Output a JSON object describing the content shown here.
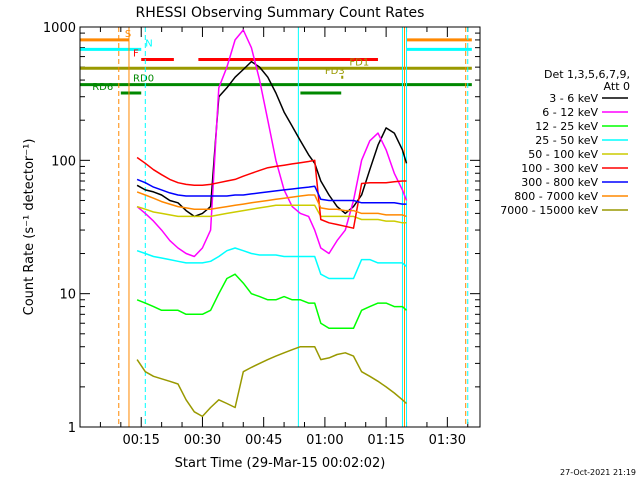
{
  "chart_data": {
    "type": "line",
    "title": "RHESSI Observing Summary Count Rates",
    "xlabel": "Start Time (29-Mar-15 00:02:02)",
    "ylabel": "Count Rate (s⁻¹ detector⁻¹)",
    "yscale": "log",
    "xlim_minutes": [
      2,
      100
    ],
    "ylim": [
      1,
      1000
    ],
    "x_ticks": [
      {
        "value": 17,
        "label": "00:15"
      },
      {
        "value": 32,
        "label": "00:30"
      },
      {
        "value": 47,
        "label": "00:45"
      },
      {
        "value": 62,
        "label": "01:00"
      },
      {
        "value": 77,
        "label": "01:15"
      },
      {
        "value": 92,
        "label": "01:30"
      }
    ],
    "y_ticks": [
      {
        "value": 1,
        "label": "1"
      },
      {
        "value": 10,
        "label": "10"
      },
      {
        "value": 100,
        "label": "100"
      },
      {
        "value": 1000,
        "label": "1000"
      }
    ],
    "legend_header": [
      "Det 1,3,5,6,7,9,",
      "Att 0"
    ],
    "legend_position": "right",
    "x": [
      12.5,
      14,
      16,
      18,
      20,
      22,
      24,
      26,
      28,
      30,
      32,
      34,
      36,
      38,
      40,
      42,
      44,
      46,
      48,
      50,
      52,
      54,
      56,
      58,
      59.5,
      61,
      63,
      65,
      67,
      69,
      71,
      73,
      75,
      77,
      79,
      81,
      82
    ],
    "series": [
      {
        "name": "3 - 6 keV",
        "color": "#000000",
        "values": [
          null,
          null,
          65,
          60,
          58,
          55,
          50,
          48,
          42,
          38,
          40,
          45,
          300,
          350,
          420,
          480,
          550,
          500,
          420,
          320,
          230,
          180,
          140,
          110,
          95,
          70,
          55,
          45,
          40,
          45,
          55,
          85,
          130,
          175,
          160,
          120,
          95
        ]
      },
      {
        "name": "6 - 12 keV",
        "color": "#ff00ff",
        "values": [
          null,
          null,
          45,
          40,
          35,
          30,
          25,
          22,
          20,
          19,
          22,
          30,
          350,
          500,
          800,
          950,
          700,
          400,
          200,
          100,
          60,
          45,
          40,
          38,
          30,
          22,
          20,
          25,
          30,
          50,
          100,
          140,
          160,
          120,
          80,
          60,
          50
        ]
      },
      {
        "name": "12 - 25 keV",
        "color": "#00ff00",
        "values": [
          null,
          null,
          9,
          8.5,
          8,
          7.5,
          7.5,
          7.5,
          7,
          7,
          7,
          7.5,
          10,
          13,
          14,
          12,
          10,
          9.5,
          9,
          9,
          9.5,
          9,
          9,
          8.5,
          8.5,
          6,
          5.5,
          5.5,
          5.5,
          5.5,
          7.5,
          8,
          8.5,
          8.5,
          8,
          8,
          7.5
        ]
      },
      {
        "name": "25 - 50 keV",
        "color": "#00ffff",
        "values": [
          null,
          null,
          21,
          20,
          19,
          18.5,
          18,
          17.5,
          17,
          17,
          17,
          17.5,
          19,
          21,
          22,
          21,
          20,
          19.5,
          19.5,
          19.5,
          19,
          19,
          19,
          19,
          19,
          14,
          13,
          13,
          13,
          13,
          18,
          18,
          17,
          17,
          17,
          17,
          16
        ]
      },
      {
        "name": "50 - 100 keV",
        "color": "#cccc00",
        "values": [
          null,
          null,
          45,
          43,
          41,
          40,
          39,
          38,
          38,
          38,
          38,
          38,
          39,
          40,
          41,
          42,
          43,
          44,
          45,
          46,
          46,
          46,
          46,
          46,
          46,
          38,
          38,
          38,
          38,
          38,
          36,
          36,
          36,
          35,
          35,
          34,
          34
        ]
      },
      {
        "name": "100 - 300 keV",
        "color": "#ff0000",
        "values": [
          null,
          null,
          105,
          95,
          85,
          78,
          72,
          68,
          66,
          65,
          65,
          66,
          68,
          70,
          72,
          76,
          80,
          84,
          88,
          90,
          92,
          94,
          96,
          98,
          100,
          36,
          34,
          33,
          32,
          31,
          67,
          68,
          68,
          68,
          69,
          70,
          70
        ]
      },
      {
        "name": "300 - 800 keV",
        "color": "#0000ff",
        "values": [
          null,
          null,
          72,
          68,
          63,
          60,
          57,
          55,
          54,
          54,
          54,
          54,
          54,
          54,
          55,
          55,
          56,
          57,
          58,
          59,
          60,
          61,
          62,
          63,
          64,
          51,
          50,
          50,
          50,
          50,
          48,
          48,
          48,
          48,
          48,
          47,
          47
        ]
      },
      {
        "name": "800 - 7000 keV",
        "color": "#ff8800",
        "values": [
          null,
          null,
          58,
          55,
          52,
          49,
          47,
          45,
          44,
          43,
          43,
          43,
          44,
          45,
          46,
          47,
          48,
          49,
          50,
          51,
          52,
          53,
          54,
          55,
          55,
          44,
          43,
          43,
          42,
          42,
          40,
          40,
          40,
          39,
          39,
          39,
          38
        ]
      },
      {
        "name": "7000 - 15000 keV",
        "color": "#999900",
        "values": [
          null,
          null,
          3.2,
          2.6,
          2.4,
          2.3,
          2.2,
          2.1,
          1.6,
          1.3,
          1.2,
          1.4,
          1.6,
          1.5,
          1.4,
          2.6,
          2.8,
          3.0,
          3.2,
          3.4,
          3.6,
          3.8,
          4.0,
          4.0,
          4.0,
          3.2,
          3.3,
          3.5,
          3.6,
          3.4,
          2.6,
          2.4,
          2.2,
          2.0,
          1.8,
          1.6,
          1.5
        ]
      }
    ],
    "flag_bars": [
      {
        "label": "S",
        "color": "#ff8800",
        "level": 800,
        "x_start": 2,
        "x_end": 14,
        "label_x": 13
      },
      {
        "label": "",
        "color": "#ff8800",
        "level": 800,
        "x_start": 82,
        "x_end": 98,
        "label_x": null
      },
      {
        "label": "N",
        "color": "#00ffff",
        "level": 680,
        "x_start": 2,
        "x_end": 17,
        "label_x": 18
      },
      {
        "label": "",
        "color": "#00ffff",
        "level": 680,
        "x_start": 82,
        "x_end": 98,
        "label_x": null
      },
      {
        "label": "F",
        "color": "#ff0000",
        "level": 570,
        "x_start": 17,
        "x_end": 25,
        "label_x": 15
      },
      {
        "label": "",
        "color": "#ff0000",
        "level": 570,
        "x_start": 31,
        "x_end": 75,
        "label_x": null
      },
      {
        "label": "FD1",
        "color": "#999900",
        "level": 490,
        "x_start": 2,
        "x_end": 98,
        "label_x": 68
      },
      {
        "label": "FD3",
        "color": "#999900",
        "level": 420,
        "x_start": 66,
        "x_end": 66.5,
        "label_x": 62
      },
      {
        "label": "RD0",
        "color": "#008800",
        "level": 370,
        "x_start": 2,
        "x_end": 98,
        "label_x": 15
      },
      {
        "label": "RD6",
        "color": "#008800",
        "level": 320,
        "x_start": 12,
        "x_end": 17,
        "label_x": 5
      },
      {
        "label": "",
        "color": "#008800",
        "level": 320,
        "x_start": 56,
        "x_end": 66,
        "label_x": null
      }
    ],
    "vertical_lines": [
      {
        "x": 11.5,
        "color": "#ff8800",
        "dashed": true
      },
      {
        "x": 14,
        "color": "#ff8800",
        "dashed": false
      },
      {
        "x": 18,
        "color": "#00ffff",
        "dashed": true
      },
      {
        "x": 55.5,
        "color": "#00ffff",
        "dashed": false
      },
      {
        "x": 81,
        "color": "#00ffff",
        "dashed": false
      },
      {
        "x": 82,
        "color": "#00ffff",
        "dashed": false
      },
      {
        "x": 81.5,
        "color": "#ff8800",
        "dashed": false
      },
      {
        "x": 96.5,
        "color": "#ff8800",
        "dashed": true
      },
      {
        "x": 97,
        "color": "#00ffff",
        "dashed": true
      }
    ]
  },
  "footer": {
    "timestamp": "27-Oct-2021 21:19"
  }
}
